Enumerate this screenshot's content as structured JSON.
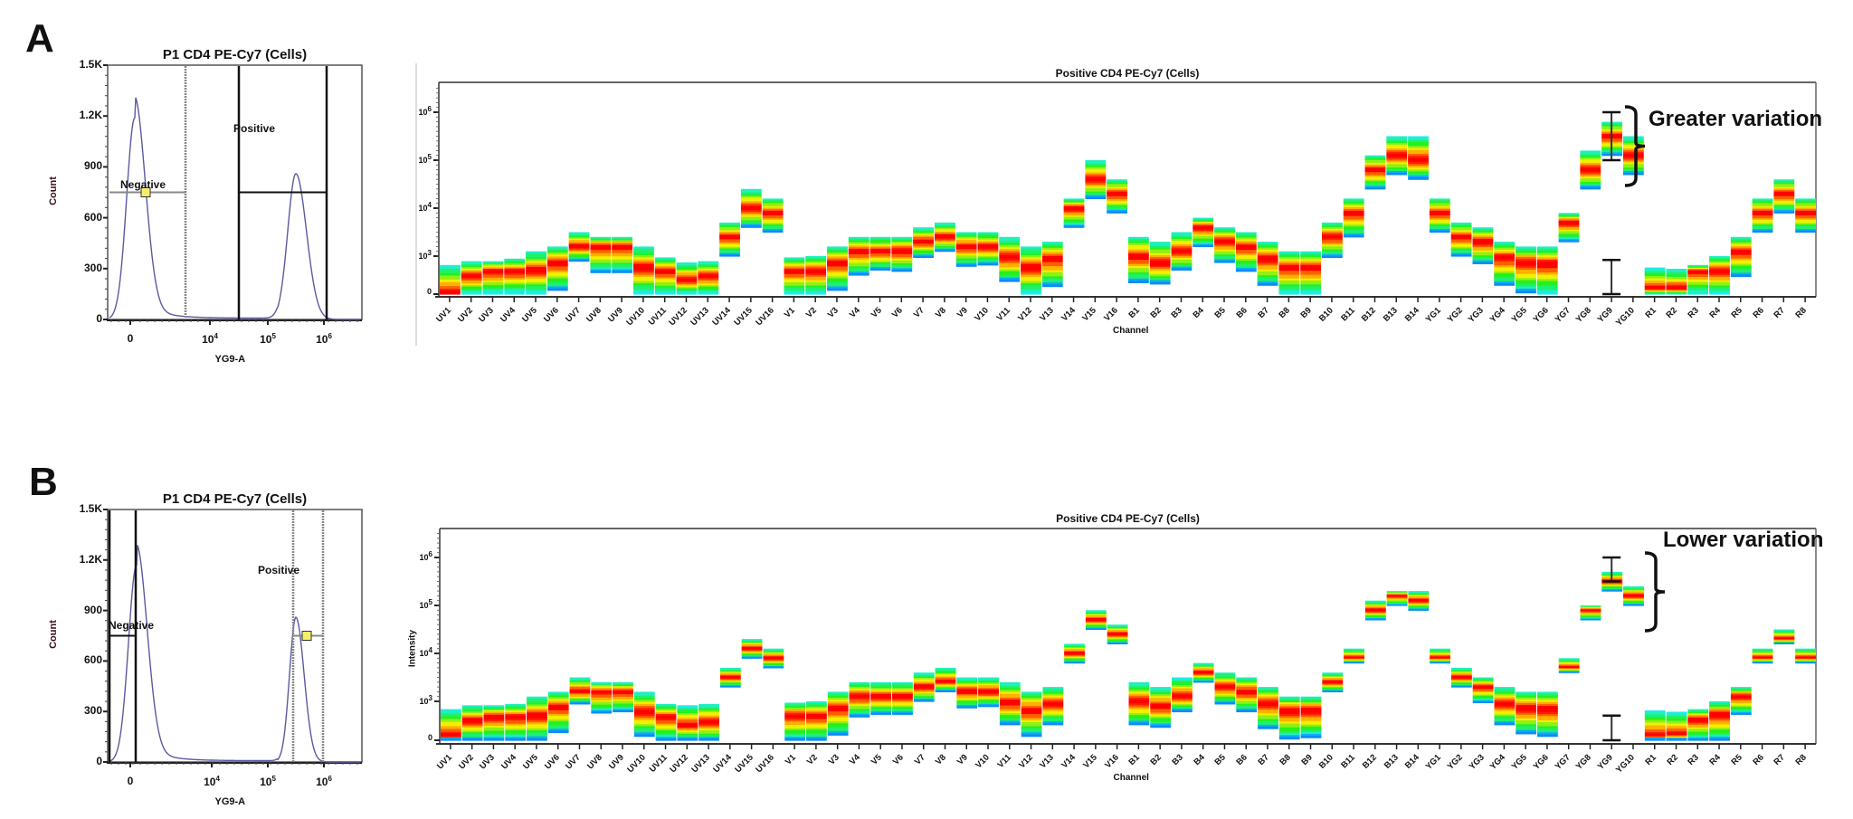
{
  "panels": [
    {
      "letter": "A",
      "histogram": {
        "title": "P1 CD4 PE-Cy7 (Cells)",
        "ylabel": "Count",
        "xlabel": "YG9-A",
        "yticks": [
          "1.5K",
          "1.2K",
          "900",
          "600",
          "300",
          "0"
        ],
        "xticks": [
          {
            "base": "0",
            "exp": ""
          },
          {
            "base": "10",
            "exp": "4"
          },
          {
            "base": "10",
            "exp": "5"
          },
          {
            "base": "10",
            "exp": "6"
          }
        ],
        "gates": [
          {
            "name": "Negative"
          },
          {
            "name": "Positive"
          }
        ]
      },
      "channel_plot": {
        "title": "Positive CD4 PE-Cy7 (Cells)",
        "ylabel": "",
        "xlabel": "Channel",
        "yticks": [
          {
            "base": "10",
            "exp": "6"
          },
          {
            "base": "10",
            "exp": "5"
          },
          {
            "base": "10",
            "exp": "4"
          },
          {
            "base": "10",
            "exp": "3"
          },
          {
            "base": "0",
            "exp": ""
          }
        ],
        "annotation": "Greater variation"
      }
    },
    {
      "letter": "B",
      "histogram": {
        "title": "P1 CD4 PE-Cy7 (Cells)",
        "ylabel": "Count",
        "xlabel": "YG9-A",
        "yticks": [
          "1.5K",
          "1.2K",
          "900",
          "600",
          "300",
          "0"
        ],
        "xticks": [
          {
            "base": "0",
            "exp": ""
          },
          {
            "base": "10",
            "exp": "4"
          },
          {
            "base": "10",
            "exp": "5"
          },
          {
            "base": "10",
            "exp": "6"
          }
        ],
        "gates": [
          {
            "name": "Negative"
          },
          {
            "name": "Positive"
          }
        ]
      },
      "channel_plot": {
        "title": "Positive CD4 PE-Cy7 (Cells)",
        "ylabel": "Intensity",
        "xlabel": "Channel",
        "yticks": [
          {
            "base": "10",
            "exp": "6"
          },
          {
            "base": "10",
            "exp": "5"
          },
          {
            "base": "10",
            "exp": "4"
          },
          {
            "base": "10",
            "exp": "3"
          },
          {
            "base": "0",
            "exp": ""
          }
        ],
        "annotation": "Lower variation"
      }
    }
  ],
  "chart_data": [
    {
      "type": "line",
      "title": "P1 CD4 PE-Cy7 (Cells) — Panel A",
      "xlabel": "YG9-A",
      "ylabel": "Count",
      "ylim": [
        0,
        1500
      ],
      "x_ticks": [
        "0",
        "10^4",
        "10^5",
        "10^6"
      ],
      "peaks": [
        {
          "position": "~0",
          "count": 1190
        },
        {
          "position": "~2.5x10^5",
          "count": 860
        }
      ],
      "gates": [
        {
          "name": "Negative",
          "x_range": [
            "<0",
            "~2x10^3"
          ],
          "style": "grey/dotted (selected)"
        },
        {
          "name": "Positive",
          "x_range": [
            "~3x10^4",
            "~1.1x10^6"
          ],
          "style": "black"
        }
      ],
      "gate_marker_count": 750
    },
    {
      "type": "heatmap",
      "title": "Positive CD4 PE-Cy7 (Cells) — Panel A (gate: broad Positive)",
      "xlabel": "Channel",
      "ylabel": "",
      "y_scale": "biexponential",
      "y_ticks": [
        "0",
        "10^3",
        "10^4",
        "10^5",
        "10^6"
      ],
      "annotation": "Greater variation",
      "error_bars_on": "YG9",
      "categories": [
        "UV1",
        "UV2",
        "UV3",
        "UV4",
        "UV5",
        "UV6",
        "UV7",
        "UV8",
        "UV9",
        "UV10",
        "UV11",
        "UV12",
        "UV13",
        "UV14",
        "UV15",
        "UV16",
        "V1",
        "V2",
        "V3",
        "V4",
        "V5",
        "V6",
        "V7",
        "V8",
        "V9",
        "V10",
        "V11",
        "V12",
        "V13",
        "V14",
        "V15",
        "V16",
        "B1",
        "B2",
        "B3",
        "B4",
        "B5",
        "B6",
        "B7",
        "B8",
        "B9",
        "B10",
        "B11",
        "B12",
        "B13",
        "B14",
        "YG1",
        "YG2",
        "YG3",
        "YG4",
        "YG5",
        "YG6",
        "YG7",
        "YG8",
        "YG9",
        "YG10",
        "R1",
        "R2",
        "R3",
        "R4",
        "R5",
        "R6",
        "R7",
        "R8"
      ],
      "series_note": "values are [bottom, center, top] in log10 decade units (0 = baseline 0; 3 = 10^3; 6 = 10^6)",
      "bands": [
        [
          0,
          0,
          2.3
        ],
        [
          0,
          1.4,
          2.6
        ],
        [
          0,
          1.8,
          2.6
        ],
        [
          0,
          1.8,
          2.8
        ],
        [
          0,
          1.9,
          3.1
        ],
        [
          0.3,
          2.5,
          3.2
        ],
        [
          2.6,
          3.2,
          3.5
        ],
        [
          1.7,
          3.2,
          3.4
        ],
        [
          1.7,
          3.2,
          3.4
        ],
        [
          0,
          2.1,
          3.2
        ],
        [
          0,
          1.8,
          2.9
        ],
        [
          0,
          1.1,
          2.5
        ],
        [
          0,
          1.4,
          2.6
        ],
        [
          3.0,
          3.4,
          3.7
        ],
        [
          3.6,
          4.0,
          4.4
        ],
        [
          3.5,
          3.9,
          4.2
        ],
        [
          0,
          1.8,
          2.9
        ],
        [
          0,
          1.8,
          3.0
        ],
        [
          0.3,
          2.5,
          3.2
        ],
        [
          1.5,
          3.1,
          3.4
        ],
        [
          1.9,
          3.1,
          3.4
        ],
        [
          1.8,
          3.1,
          3.4
        ],
        [
          2.9,
          3.3,
          3.6
        ],
        [
          3.1,
          3.4,
          3.7
        ],
        [
          2.2,
          3.2,
          3.5
        ],
        [
          2.3,
          3.2,
          3.5
        ],
        [
          1.0,
          2.9,
          3.4
        ],
        [
          0,
          2.1,
          3.2
        ],
        [
          0.6,
          2.8,
          3.3
        ],
        [
          3.6,
          4.0,
          4.2
        ],
        [
          4.2,
          4.6,
          5.0
        ],
        [
          3.9,
          4.3,
          4.6
        ],
        [
          0.9,
          3.0,
          3.4
        ],
        [
          0.8,
          2.4,
          3.3
        ],
        [
          1.9,
          3.1,
          3.5
        ],
        [
          3.2,
          3.6,
          3.8
        ],
        [
          2.5,
          3.3,
          3.6
        ],
        [
          1.8,
          3.2,
          3.5
        ],
        [
          0.7,
          2.8,
          3.3
        ],
        [
          0,
          2.1,
          3.1
        ],
        [
          0,
          2.1,
          3.1
        ],
        [
          2.9,
          3.4,
          3.7
        ],
        [
          3.4,
          3.9,
          4.2
        ],
        [
          4.4,
          4.8,
          5.1
        ],
        [
          4.7,
          5.1,
          5.5
        ],
        [
          4.6,
          5.0,
          5.5
        ],
        [
          3.5,
          3.9,
          4.2
        ],
        [
          3.0,
          3.4,
          3.7
        ],
        [
          2.4,
          3.3,
          3.6
        ],
        [
          0.7,
          2.9,
          3.3
        ],
        [
          0.1,
          2.5,
          3.2
        ],
        [
          0,
          2.4,
          3.2
        ],
        [
          3.3,
          3.7,
          3.9
        ],
        [
          4.4,
          4.8,
          5.2
        ],
        [
          5.1,
          5.5,
          5.8
        ],
        [
          4.7,
          5.1,
          5.5
        ],
        [
          0,
          0.4,
          2.1
        ],
        [
          0,
          0.4,
          2.0
        ],
        [
          0,
          1.8,
          2.3
        ],
        [
          0,
          1.8,
          3.0
        ],
        [
          1.4,
          3.1,
          3.4
        ],
        [
          3.5,
          3.9,
          4.2
        ],
        [
          3.9,
          4.3,
          4.6
        ],
        [
          3.5,
          3.9,
          4.2
        ]
      ],
      "error_bars": [
        {
          "channel": "YG9",
          "upper": [
            5.0,
            6.0
          ],
          "lower": [
            0,
            2.7
          ]
        }
      ]
    },
    {
      "type": "line",
      "title": "P1 CD4 PE-Cy7 (Cells) — Panel B",
      "xlabel": "YG9-A",
      "ylabel": "Count",
      "ylim": [
        0,
        1500
      ],
      "x_ticks": [
        "0",
        "10^4",
        "10^5",
        "10^6"
      ],
      "peaks": [
        {
          "position": "~0",
          "count": 1170
        },
        {
          "position": "~2.5x10^5",
          "count": 860
        }
      ],
      "gates": [
        {
          "name": "Negative",
          "x_range": [
            "<0",
            "~2x10^2"
          ],
          "style": "black"
        },
        {
          "name": "Positive",
          "x_range": [
            "~2.3x10^5",
            "~9x10^5"
          ],
          "style": "grey/dotted (selected)"
        }
      ],
      "gate_marker_count": 750
    },
    {
      "type": "heatmap",
      "title": "Positive CD4 PE-Cy7 (Cells) — Panel B (gate: narrow Positive)",
      "xlabel": "Channel",
      "ylabel": "Intensity",
      "y_scale": "biexponential",
      "y_ticks": [
        "0",
        "10^3",
        "10^4",
        "10^5",
        "10^6"
      ],
      "annotation": "Lower variation",
      "error_bars_on": "YG9",
      "categories": [
        "UV1",
        "UV2",
        "UV3",
        "UV4",
        "UV5",
        "UV6",
        "UV7",
        "UV8",
        "UV9",
        "UV10",
        "UV11",
        "UV12",
        "UV13",
        "UV14",
        "UV15",
        "UV16",
        "V1",
        "V2",
        "V3",
        "V4",
        "V5",
        "V6",
        "V7",
        "V8",
        "V9",
        "V10",
        "V11",
        "V12",
        "V13",
        "V14",
        "V15",
        "V16",
        "B1",
        "B2",
        "B3",
        "B4",
        "B5",
        "B6",
        "B7",
        "B8",
        "B9",
        "B10",
        "B11",
        "B12",
        "B13",
        "B14",
        "YG1",
        "YG2",
        "YG3",
        "YG4",
        "YG5",
        "YG6",
        "YG7",
        "YG8",
        "YG9",
        "YG10",
        "R1",
        "R2",
        "R3",
        "R4",
        "R5",
        "R6",
        "R7",
        "R8"
      ],
      "series_note": "values are [bottom, center, top] in log10 decade units (0 = baseline 0; 3 = 10^3; 6 = 10^6)",
      "bands": [
        [
          0,
          0.3,
          2.4
        ],
        [
          0,
          1.5,
          2.7
        ],
        [
          0,
          1.8,
          2.7
        ],
        [
          0,
          1.8,
          2.8
        ],
        [
          0,
          1.9,
          3.1
        ],
        [
          0.6,
          2.6,
          3.2
        ],
        [
          2.8,
          3.2,
          3.5
        ],
        [
          2.1,
          3.2,
          3.4
        ],
        [
          2.2,
          3.2,
          3.4
        ],
        [
          0.3,
          2.2,
          3.2
        ],
        [
          0,
          1.8,
          2.8
        ],
        [
          0,
          1.1,
          2.7
        ],
        [
          0,
          1.4,
          2.8
        ],
        [
          3.3,
          3.5,
          3.7
        ],
        [
          3.9,
          4.1,
          4.3
        ],
        [
          3.7,
          3.9,
          4.1
        ],
        [
          0,
          1.9,
          2.9
        ],
        [
          0,
          1.9,
          3.0
        ],
        [
          0.4,
          2.5,
          3.2
        ],
        [
          1.8,
          3.1,
          3.4
        ],
        [
          2.0,
          3.1,
          3.4
        ],
        [
          2.0,
          3.1,
          3.4
        ],
        [
          3.0,
          3.3,
          3.6
        ],
        [
          3.2,
          3.4,
          3.7
        ],
        [
          2.5,
          3.2,
          3.5
        ],
        [
          2.6,
          3.2,
          3.5
        ],
        [
          1.2,
          2.9,
          3.4
        ],
        [
          0.3,
          2.3,
          3.2
        ],
        [
          1.2,
          2.8,
          3.3
        ],
        [
          3.8,
          4.0,
          4.2
        ],
        [
          4.5,
          4.7,
          4.9
        ],
        [
          4.2,
          4.4,
          4.6
        ],
        [
          1.2,
          3.0,
          3.4
        ],
        [
          1.0,
          2.6,
          3.3
        ],
        [
          2.2,
          3.1,
          3.5
        ],
        [
          3.4,
          3.6,
          3.8
        ],
        [
          2.8,
          3.3,
          3.6
        ],
        [
          2.2,
          3.2,
          3.5
        ],
        [
          0.9,
          2.8,
          3.3
        ],
        [
          0.1,
          2.3,
          3.1
        ],
        [
          0.2,
          2.3,
          3.1
        ],
        [
          3.2,
          3.4,
          3.6
        ],
        [
          3.8,
          3.9,
          4.1
        ],
        [
          4.7,
          4.9,
          5.1
        ],
        [
          5.0,
          5.2,
          5.3
        ],
        [
          4.9,
          5.1,
          5.3
        ],
        [
          3.8,
          3.9,
          4.1
        ],
        [
          3.3,
          3.5,
          3.7
        ],
        [
          2.9,
          3.3,
          3.5
        ],
        [
          1.2,
          2.8,
          3.3
        ],
        [
          0.5,
          2.5,
          3.2
        ],
        [
          0.3,
          2.4,
          3.2
        ],
        [
          3.6,
          3.7,
          3.9
        ],
        [
          4.7,
          4.9,
          5.0
        ],
        [
          5.3,
          5.5,
          5.7
        ],
        [
          5.0,
          5.2,
          5.4
        ],
        [
          0,
          0.3,
          2.3
        ],
        [
          0,
          0.4,
          2.2
        ],
        [
          0,
          1.6,
          2.4
        ],
        [
          0,
          2.0,
          3.0
        ],
        [
          2.0,
          3.1,
          3.3
        ],
        [
          3.8,
          3.9,
          4.1
        ],
        [
          4.2,
          4.3,
          4.5
        ],
        [
          3.8,
          3.9,
          4.1
        ]
      ],
      "error_bars": [
        {
          "channel": "YG9",
          "upper": [
            5.5,
            6.0
          ],
          "lower": [
            0,
            1.9
          ]
        }
      ]
    }
  ]
}
